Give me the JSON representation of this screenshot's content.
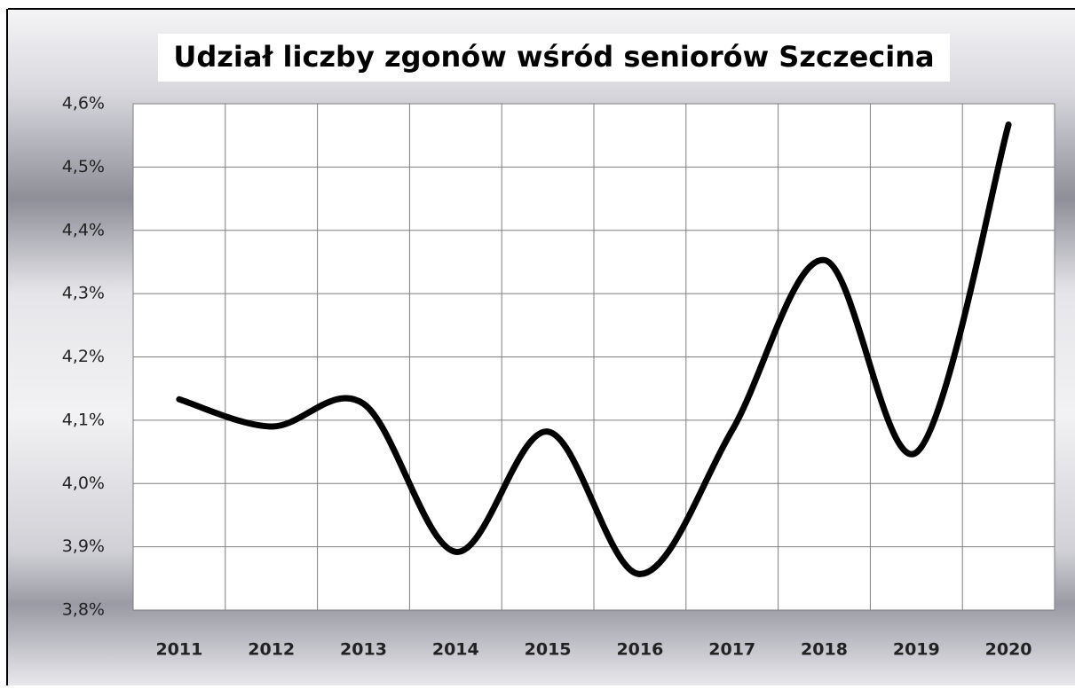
{
  "chart_data": {
    "type": "line",
    "title": "Udział liczby zgonów wśród seniorów Szczecina",
    "categories": [
      "2011",
      "2012",
      "2013",
      "2014",
      "2015",
      "2016",
      "2017",
      "2018",
      "2019",
      "2020"
    ],
    "series": [
      {
        "color": "#000000",
        "values": [
          4.133,
          4.09,
          4.126,
          3.892,
          4.082,
          3.857,
          4.084,
          4.353,
          4.049,
          4.567
        ]
      }
    ],
    "ylim": [
      3.8,
      4.6
    ],
    "yticks": [
      {
        "value": 3.8,
        "label": "3,8%"
      },
      {
        "value": 3.9,
        "label": "3,9%"
      },
      {
        "value": 4.0,
        "label": "4,0%"
      },
      {
        "value": 4.1,
        "label": "4,1%"
      },
      {
        "value": 4.2,
        "label": "4,2%"
      },
      {
        "value": 4.3,
        "label": "4,3%"
      },
      {
        "value": 4.4,
        "label": "4,4%"
      },
      {
        "value": 4.5,
        "label": "4,5%"
      },
      {
        "value": 4.6,
        "label": "4,6%"
      }
    ],
    "grid": true
  }
}
